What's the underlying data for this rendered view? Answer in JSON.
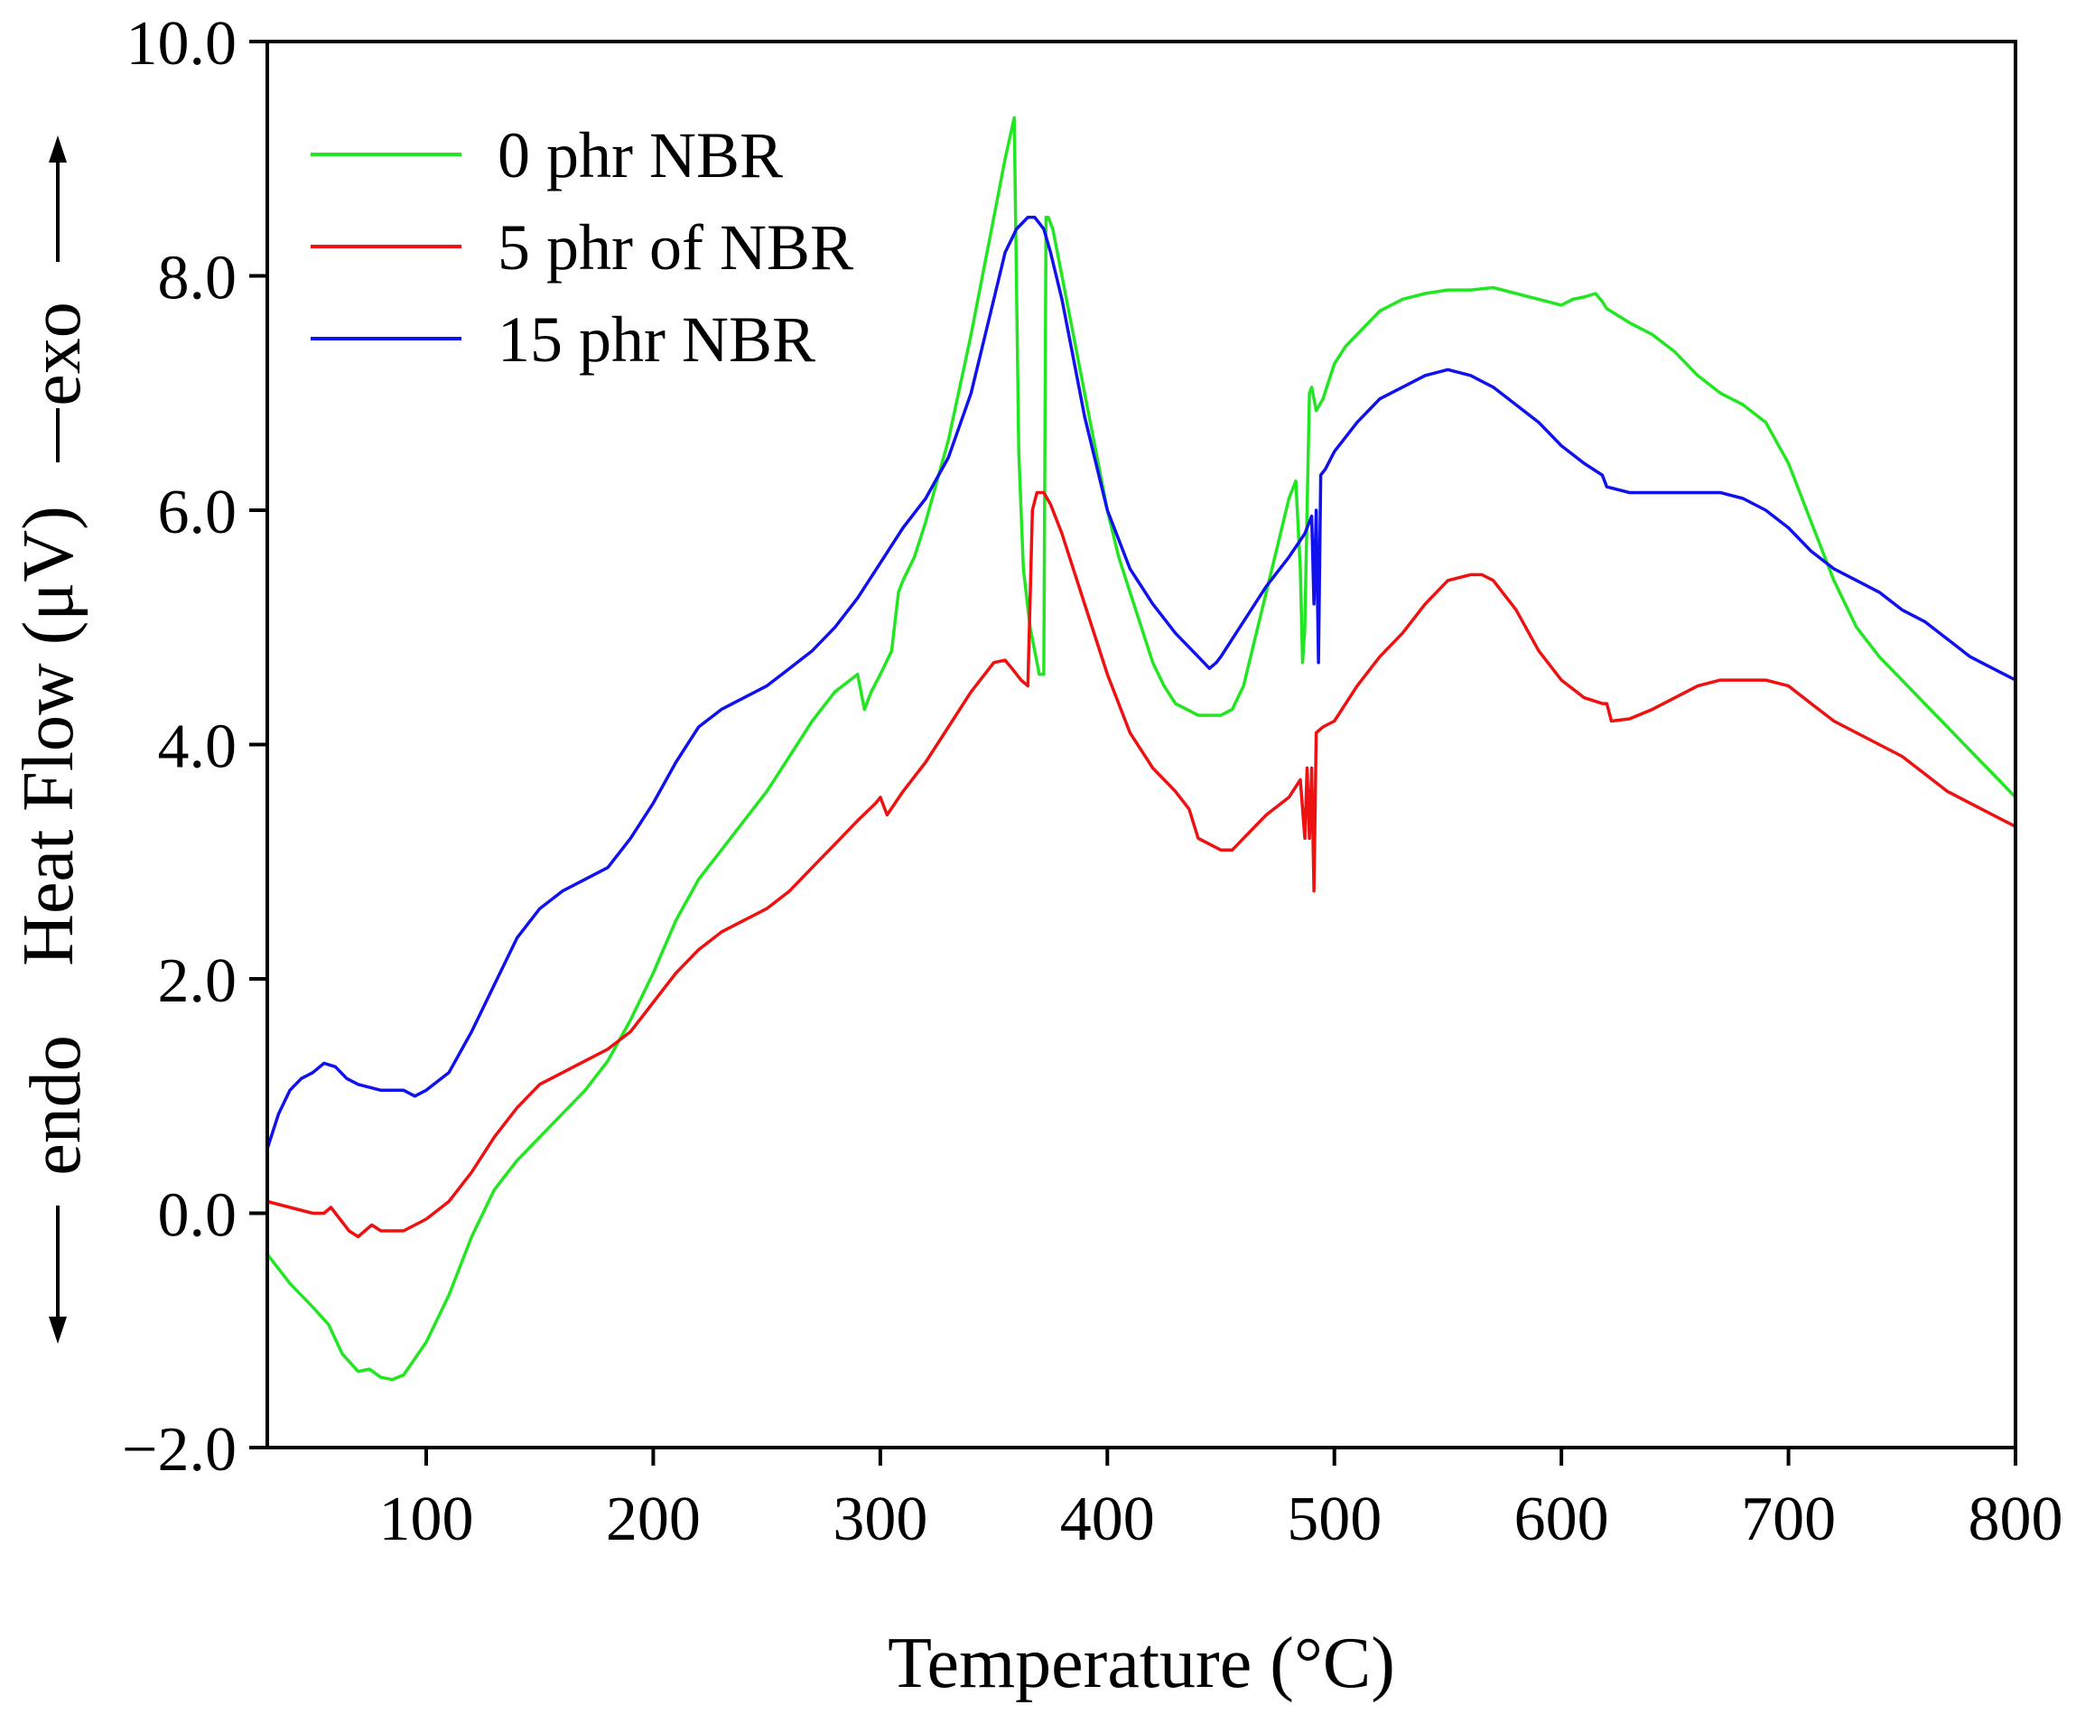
{
  "chart_data": {
    "type": "line",
    "title": "",
    "xlabel": "Temperature (°C)",
    "ylabel": "Heat Flow (μV)",
    "xlim": [
      30,
      800
    ],
    "ylim": [
      -2.0,
      10.0
    ],
    "xticks": [
      100,
      200,
      300,
      400,
      500,
      600,
      700,
      800
    ],
    "xtick_labels": [
      "100",
      "200",
      "300",
      "400",
      "500",
      "600",
      "700",
      "800"
    ],
    "yticks": [
      -2.0,
      0.0,
      2.0,
      4.0,
      6.0,
      8.0,
      10.0
    ],
    "ytick_labels": [
      "−2.0",
      "0.0",
      "2.0",
      "4.0",
      "6.0",
      "8.0",
      "10.0"
    ],
    "annotations": {
      "exo": "exo",
      "endo": "endo"
    },
    "legend": "top-left",
    "grid": false,
    "series": [
      {
        "name": "0 phr NBR",
        "color": "#22e622",
        "x": [
          30,
          40,
          50,
          57,
          63,
          70,
          75,
          80,
          85,
          90,
          100,
          110,
          120,
          130,
          140,
          150,
          160,
          170,
          180,
          190,
          200,
          210,
          220,
          230,
          240,
          250,
          260,
          270,
          280,
          290,
          293,
          296,
          300,
          305,
          308,
          310,
          315,
          320,
          330,
          340,
          350,
          355,
          359,
          361,
          363,
          366,
          370,
          372,
          373,
          374,
          376,
          380,
          385,
          390,
          395,
          400,
          405,
          410,
          415,
          420,
          425,
          430,
          440,
          450,
          455,
          460,
          465,
          470,
          475,
          480,
          483,
          485,
          486,
          487,
          488,
          489,
          490,
          492,
          495,
          500,
          505,
          510,
          520,
          530,
          540,
          550,
          560,
          570,
          580,
          590,
          600,
          605,
          610,
          615,
          618,
          620,
          630,
          640,
          650,
          660,
          670,
          680,
          690,
          700,
          710,
          720,
          730,
          740,
          750,
          760,
          770,
          780,
          790,
          800
        ],
        "values": [
          -0.35,
          -0.6,
          -0.8,
          -0.95,
          -1.2,
          -1.35,
          -1.33,
          -1.4,
          -1.42,
          -1.38,
          -1.1,
          -0.7,
          -0.2,
          0.2,
          0.45,
          0.65,
          0.85,
          1.05,
          1.3,
          1.65,
          2.05,
          2.5,
          2.85,
          3.1,
          3.35,
          3.6,
          3.9,
          4.2,
          4.45,
          4.6,
          4.3,
          4.45,
          4.6,
          4.8,
          5.3,
          5.4,
          5.6,
          5.9,
          6.6,
          7.5,
          8.5,
          9.0,
          9.35,
          6.5,
          5.5,
          5.0,
          4.6,
          4.6,
          8.5,
          8.5,
          8.4,
          8.0,
          7.5,
          7.0,
          6.5,
          6.0,
          5.6,
          5.3,
          5.0,
          4.7,
          4.5,
          4.35,
          4.25,
          4.25,
          4.3,
          4.5,
          4.9,
          5.3,
          5.7,
          6.1,
          6.25,
          5.5,
          4.7,
          5.0,
          6.0,
          7.0,
          7.05,
          6.85,
          6.95,
          7.25,
          7.4,
          7.5,
          7.7,
          7.8,
          7.85,
          7.88,
          7.88,
          7.9,
          7.85,
          7.8,
          7.75,
          7.8,
          7.82,
          7.85,
          7.78,
          7.72,
          7.6,
          7.5,
          7.35,
          7.15,
          7.0,
          6.9,
          6.75,
          6.4,
          5.9,
          5.4,
          5.0,
          4.75,
          4.55,
          4.35,
          4.15,
          3.95,
          3.75,
          3.55
        ]
      },
      {
        "name": "5 phr of NBR",
        "color": "#ee1111",
        "x": [
          30,
          40,
          50,
          55,
          58,
          62,
          66,
          70,
          73,
          76,
          80,
          90,
          100,
          110,
          120,
          130,
          140,
          150,
          160,
          170,
          180,
          190,
          200,
          210,
          220,
          230,
          240,
          250,
          260,
          270,
          280,
          290,
          298,
          300,
          303,
          310,
          320,
          330,
          340,
          350,
          355,
          358,
          362,
          365,
          367,
          369,
          372,
          375,
          380,
          390,
          400,
          410,
          420,
          430,
          436,
          440,
          450,
          455,
          460,
          470,
          480,
          485,
          487,
          488,
          489,
          490,
          491,
          492,
          495,
          500,
          510,
          520,
          530,
          540,
          550,
          560,
          565,
          570,
          580,
          590,
          600,
          610,
          618,
          620,
          622,
          630,
          640,
          650,
          660,
          670,
          680,
          690,
          700,
          710,
          720,
          730,
          740,
          750,
          760,
          770,
          780,
          790,
          800
        ],
        "values": [
          0.1,
          0.05,
          0.0,
          0.0,
          0.05,
          -0.05,
          -0.15,
          -0.2,
          -0.15,
          -0.1,
          -0.15,
          -0.15,
          -0.05,
          0.1,
          0.35,
          0.65,
          0.9,
          1.1,
          1.2,
          1.3,
          1.4,
          1.55,
          1.8,
          2.05,
          2.25,
          2.4,
          2.5,
          2.6,
          2.75,
          2.95,
          3.15,
          3.35,
          3.5,
          3.55,
          3.4,
          3.6,
          3.85,
          4.15,
          4.45,
          4.7,
          4.72,
          4.65,
          4.55,
          4.5,
          6.0,
          6.15,
          6.15,
          6.05,
          5.8,
          5.2,
          4.6,
          4.1,
          3.8,
          3.6,
          3.45,
          3.2,
          3.1,
          3.1,
          3.2,
          3.4,
          3.55,
          3.7,
          3.2,
          3.8,
          3.2,
          3.8,
          2.75,
          4.1,
          4.15,
          4.2,
          4.5,
          4.75,
          4.95,
          5.2,
          5.4,
          5.45,
          5.45,
          5.4,
          5.15,
          4.8,
          4.55,
          4.4,
          4.35,
          4.35,
          4.2,
          4.22,
          4.3,
          4.4,
          4.5,
          4.55,
          4.55,
          4.55,
          4.5,
          4.35,
          4.2,
          4.1,
          4.0,
          3.9,
          3.75,
          3.6,
          3.5,
          3.4,
          3.3
        ]
      },
      {
        "name": "15 phr NBR",
        "color": "#1111ee",
        "x": [
          30,
          35,
          40,
          45,
          50,
          55,
          60,
          65,
          70,
          80,
          90,
          95,
          100,
          110,
          120,
          130,
          140,
          150,
          160,
          170,
          180,
          190,
          200,
          210,
          220,
          230,
          240,
          250,
          260,
          270,
          280,
          290,
          300,
          310,
          320,
          330,
          340,
          350,
          355,
          360,
          365,
          368,
          372,
          375,
          380,
          385,
          390,
          400,
          410,
          420,
          430,
          440,
          445,
          448,
          450,
          460,
          470,
          480,
          487,
          490,
          491,
          492,
          493,
          494,
          496,
          500,
          510,
          520,
          530,
          540,
          550,
          560,
          570,
          580,
          590,
          600,
          610,
          618,
          620,
          630,
          640,
          650,
          660,
          670,
          680,
          690,
          700,
          710,
          720,
          730,
          740,
          750,
          760,
          770,
          780,
          790,
          800
        ],
        "values": [
          0.55,
          0.85,
          1.05,
          1.15,
          1.2,
          1.28,
          1.25,
          1.15,
          1.1,
          1.05,
          1.05,
          1.0,
          1.05,
          1.2,
          1.55,
          1.95,
          2.35,
          2.6,
          2.75,
          2.85,
          2.95,
          3.2,
          3.5,
          3.85,
          4.15,
          4.3,
          4.4,
          4.5,
          4.65,
          4.8,
          5.0,
          5.25,
          5.55,
          5.85,
          6.1,
          6.45,
          7.0,
          7.8,
          8.2,
          8.4,
          8.5,
          8.5,
          8.4,
          8.2,
          7.8,
          7.3,
          6.8,
          6.0,
          5.5,
          5.2,
          4.95,
          4.75,
          4.65,
          4.7,
          4.75,
          5.05,
          5.35,
          5.6,
          5.8,
          5.95,
          5.2,
          6.0,
          4.7,
          6.3,
          6.35,
          6.5,
          6.75,
          6.95,
          7.05,
          7.15,
          7.2,
          7.15,
          7.05,
          6.9,
          6.75,
          6.55,
          6.4,
          6.3,
          6.2,
          6.15,
          6.15,
          6.15,
          6.15,
          6.15,
          6.1,
          6.0,
          5.85,
          5.65,
          5.5,
          5.4,
          5.3,
          5.15,
          5.05,
          4.9,
          4.75,
          4.65,
          4.55
        ]
      }
    ]
  }
}
